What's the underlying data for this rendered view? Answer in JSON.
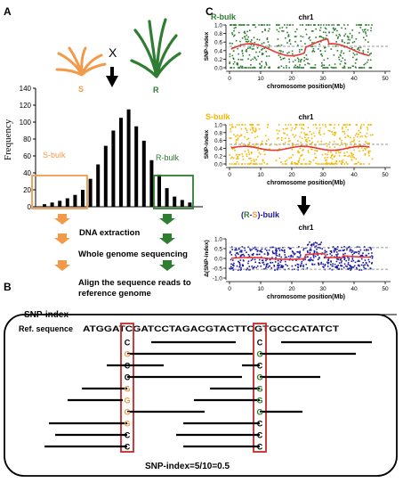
{
  "colors": {
    "s_orange": "#f39a4a",
    "r_green": "#2e7d32",
    "bulk_blue": "#1a1aa0",
    "bulk_yellow": "#f5b800",
    "bulk_green": "#2e7d32",
    "red_line": "#e53935",
    "box_red": "#c62828",
    "black": "#000000"
  },
  "panel_a": {
    "label": "A",
    "marker_x": "X",
    "plant_s": "S",
    "plant_r": "R",
    "s_bulk": "S-bulk",
    "r_bulk": "R-bulk",
    "histogram": {
      "ylabel": "Frequency",
      "yticks": [
        "0",
        "20",
        "40",
        "60",
        "80",
        "100",
        "120",
        "140"
      ],
      "ymax": 140,
      "values": [
        3,
        5,
        7,
        10,
        14,
        20,
        33,
        50,
        72,
        90,
        105,
        115,
        95,
        78,
        55,
        38,
        22,
        12,
        8,
        5
      ]
    },
    "steps": [
      "DNA extraction",
      "Whole genome sequencing",
      "Align the sequence reads to reference genome"
    ]
  },
  "panel_b": {
    "label": "B",
    "title": "SNP-index",
    "ref_label": "Ref. sequence",
    "ref_seq": "ATGGATCGATCCTAGACGTACTTCGTGCCCATATCT",
    "left_column": [
      "C",
      "G",
      "C",
      "C",
      "G",
      "G",
      "G",
      "G",
      "C",
      "C"
    ],
    "right_column": [
      "C",
      "G",
      "C",
      "G",
      "G",
      "G",
      "G",
      "C",
      "C",
      "C"
    ],
    "formula": "SNP-index=5/10=0.5"
  },
  "panel_c": {
    "label": "C",
    "chrom_title": "chr1",
    "xlabel": "chromosome position(Mb)",
    "xticks": [
      "0",
      "10",
      "20",
      "30",
      "40",
      "50"
    ],
    "plots": [
      {
        "name": "R-bulk",
        "ylabel": "SNP-index",
        "yticks": [
          "0.0",
          "0.2",
          "0.4",
          "0.6",
          "0.8",
          "1.0"
        ]
      },
      {
        "name": "S-bulk",
        "ylabel": "SNP-index",
        "yticks": [
          "0.0",
          "0.2",
          "0.4",
          "0.6",
          "0.8",
          "1.0"
        ]
      },
      {
        "name_open": "(",
        "name_r": "R",
        "name_dash": "-",
        "name_s": "S",
        "name_close": ")-bulk",
        "ylabel": "Δ(SNP-index)",
        "yticks": [
          "-1.0",
          "-0.5",
          "0.0",
          "0.5",
          "1.0"
        ]
      }
    ]
  }
}
